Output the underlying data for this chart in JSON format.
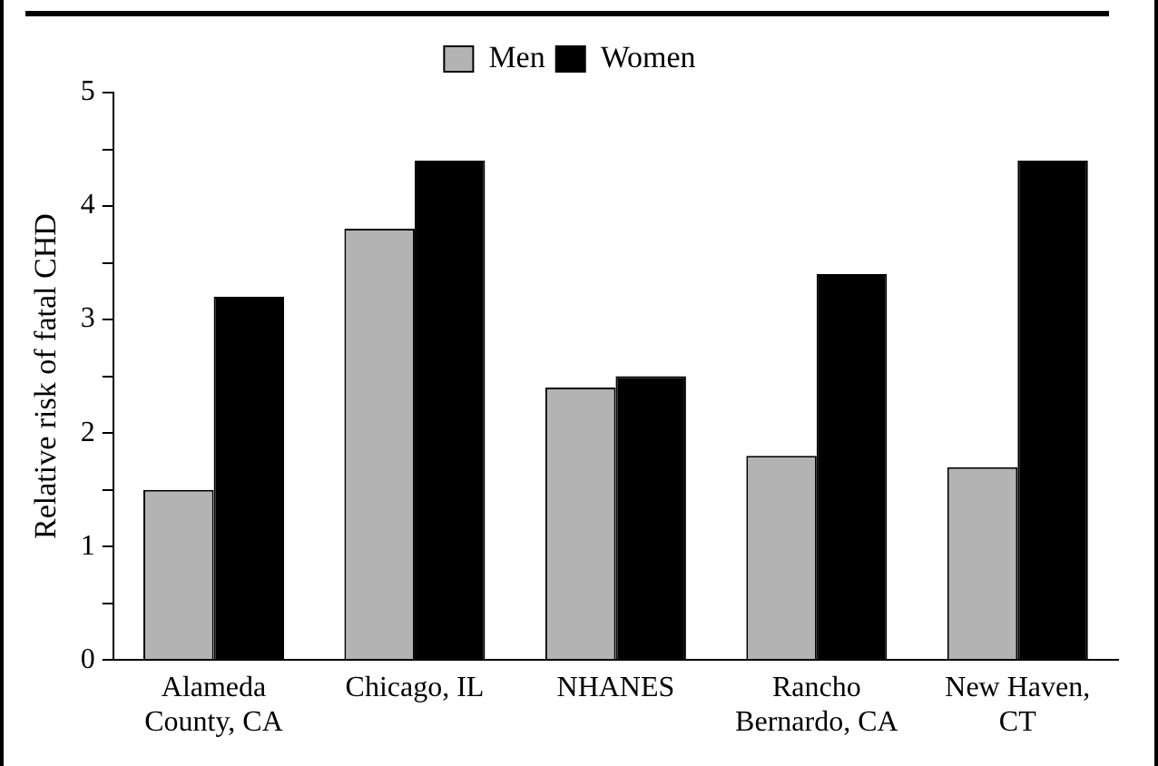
{
  "chart_data": {
    "type": "bar",
    "ylabel": "Relative risk of fatal CHD",
    "categories": [
      "Alameda County, CA",
      "Chicago, IL",
      "NHANES",
      "Rancho Bernardo, CA",
      "New Haven, CT"
    ],
    "series": [
      {
        "name": "Men",
        "color": "#b3b3b3",
        "values": [
          1.5,
          3.8,
          2.4,
          1.8,
          1.7
        ]
      },
      {
        "name": "Women",
        "color": "#000000",
        "values": [
          3.2,
          4.4,
          2.5,
          3.4,
          4.4
        ]
      }
    ],
    "ylim": [
      0,
      5
    ],
    "yticks": [
      0,
      {
        "value": 0.5,
        "label": null
      },
      1,
      {
        "value": 1.5,
        "label": null
      },
      2,
      {
        "value": 2.5,
        "label": null
      },
      3,
      {
        "value": 3.5,
        "label": null
      },
      4,
      {
        "value": 4.5,
        "label": null
      },
      5
    ],
    "grid": false,
    "legend": "top"
  }
}
